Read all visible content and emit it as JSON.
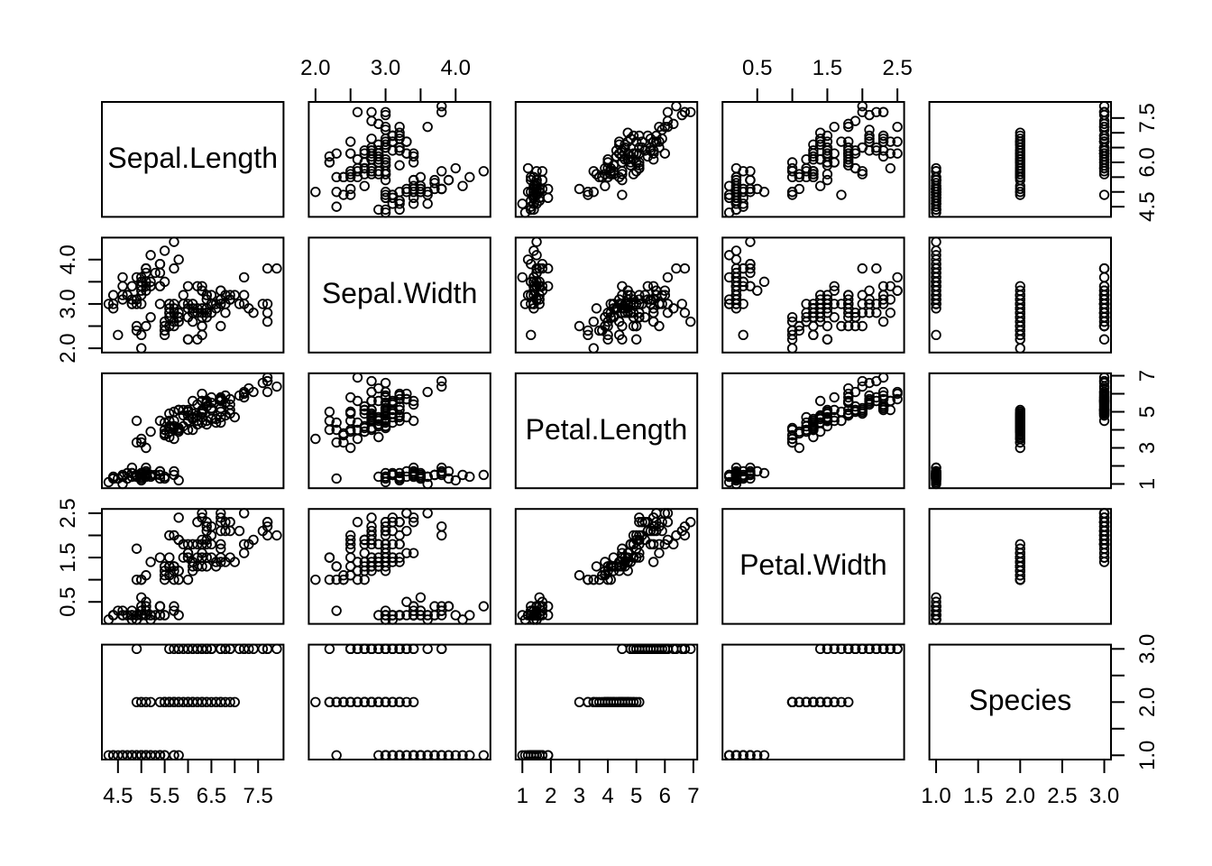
{
  "colors": {
    "background": "#ffffff",
    "foreground": "#000000"
  },
  "chart_data": {
    "type": "scatter-matrix",
    "title": "",
    "point_style": "open-circle",
    "grid": false,
    "variables": [
      {
        "name": "Sepal.Length",
        "lim": [
          4.156,
          8.044
        ],
        "ticks": [
          4.5,
          5.0,
          5.5,
          6.0,
          6.5,
          7.0,
          7.5
        ],
        "h_labels": {
          "values": [
            4.5,
            5.5,
            6.5,
            7.5
          ],
          "texts": [
            "4.5",
            "5.5",
            "6.5",
            "7.5"
          ]
        },
        "v_labels": {
          "values": [
            4.5,
            6.0,
            7.5
          ],
          "texts": [
            "4.5",
            "6.0",
            "7.5"
          ]
        }
      },
      {
        "name": "Sepal.Width",
        "lim": [
          1.904,
          4.496
        ],
        "ticks": [
          2.0,
          2.5,
          3.0,
          3.5,
          4.0
        ],
        "h_labels": {
          "values": [
            2.0,
            3.0,
            4.0
          ],
          "texts": [
            "2.0",
            "3.0",
            "4.0"
          ]
        },
        "v_labels": {
          "values": [
            2.0,
            3.0,
            4.0
          ],
          "texts": [
            "2.0",
            "3.0",
            "4.0"
          ]
        }
      },
      {
        "name": "Petal.Length",
        "lim": [
          0.764,
          7.136
        ],
        "ticks": [
          1,
          2,
          3,
          4,
          5,
          6,
          7
        ],
        "h_labels": {
          "values": [
            1,
            2,
            3,
            4,
            5,
            6,
            7
          ],
          "texts": [
            "1",
            "2",
            "3",
            "4",
            "5",
            "6",
            "7"
          ]
        },
        "v_labels": {
          "values": [
            1,
            3,
            5,
            7
          ],
          "texts": [
            "1",
            "3",
            "5",
            "7"
          ]
        }
      },
      {
        "name": "Petal.Width",
        "lim": [
          0.004,
          2.596
        ],
        "ticks": [
          0.5,
          1.0,
          1.5,
          2.0,
          2.5
        ],
        "h_labels": {
          "values": [
            0.5,
            1.5,
            2.5
          ],
          "texts": [
            "0.5",
            "1.5",
            "2.5"
          ]
        },
        "v_labels": {
          "values": [
            0.5,
            1.5,
            2.5
          ],
          "texts": [
            "0.5",
            "1.5",
            "2.5"
          ]
        }
      },
      {
        "name": "Species",
        "lim": [
          0.92,
          3.08
        ],
        "ticks": [
          1.0,
          1.5,
          2.0,
          2.5,
          3.0
        ],
        "h_labels": {
          "values": [
            1.0,
            1.5,
            2.0,
            2.5,
            3.0
          ],
          "texts": [
            "1.0",
            "1.5",
            "2.0",
            "2.5",
            "3.0"
          ]
        },
        "v_labels": {
          "values": [
            1.0,
            2.0,
            3.0
          ],
          "texts": [
            "1.0",
            "2.0",
            "3.0"
          ]
        }
      }
    ],
    "observations": {
      "Sepal.Length": [
        5.1,
        4.9,
        4.7,
        4.6,
        5.0,
        5.4,
        4.6,
        5.0,
        4.4,
        4.9,
        5.4,
        4.8,
        4.8,
        4.3,
        5.8,
        5.7,
        5.4,
        5.1,
        5.7,
        5.1,
        5.4,
        5.1,
        4.6,
        5.1,
        4.8,
        5.0,
        5.0,
        5.2,
        5.2,
        4.7,
        4.8,
        5.4,
        5.2,
        5.5,
        4.9,
        5.0,
        5.5,
        4.9,
        4.4,
        5.1,
        5.0,
        4.5,
        4.4,
        5.0,
        5.1,
        4.8,
        5.1,
        4.6,
        5.3,
        5.0,
        7.0,
        6.4,
        6.9,
        5.5,
        6.5,
        5.7,
        6.3,
        4.9,
        6.6,
        5.2,
        5.0,
        5.9,
        6.0,
        6.1,
        5.6,
        6.7,
        5.6,
        5.8,
        6.2,
        5.6,
        5.9,
        6.1,
        6.3,
        6.1,
        6.4,
        6.6,
        6.8,
        6.7,
        6.0,
        5.7,
        5.5,
        5.5,
        5.8,
        6.0,
        5.4,
        6.0,
        6.7,
        6.3,
        5.6,
        5.5,
        5.5,
        6.1,
        5.8,
        5.0,
        5.6,
        5.7,
        5.7,
        6.2,
        5.1,
        5.7,
        6.3,
        5.8,
        7.1,
        6.3,
        6.5,
        7.6,
        4.9,
        7.3,
        6.7,
        7.2,
        6.5,
        6.4,
        6.8,
        5.7,
        5.8,
        6.4,
        6.5,
        7.7,
        7.7,
        6.0,
        6.9,
        5.6,
        7.7,
        6.3,
        6.7,
        7.2,
        6.2,
        6.1,
        6.4,
        7.2,
        7.4,
        7.9,
        6.4,
        6.3,
        6.1,
        7.7,
        6.3,
        6.4,
        6.0,
        6.9,
        6.7,
        6.9,
        5.8,
        6.8,
        6.7,
        6.7,
        6.3,
        6.5,
        6.2,
        5.9
      ],
      "Sepal.Width": [
        3.5,
        3.0,
        3.2,
        3.1,
        3.6,
        3.9,
        3.4,
        3.4,
        2.9,
        3.1,
        3.7,
        3.4,
        3.0,
        3.0,
        4.0,
        4.4,
        3.9,
        3.5,
        3.8,
        3.8,
        3.4,
        3.7,
        3.6,
        3.3,
        3.4,
        3.0,
        3.4,
        3.5,
        3.4,
        3.2,
        3.1,
        3.4,
        4.1,
        4.2,
        3.1,
        3.2,
        3.5,
        3.6,
        3.0,
        3.4,
        3.5,
        2.3,
        3.2,
        3.5,
        3.8,
        3.0,
        3.8,
        3.2,
        3.7,
        3.3,
        3.2,
        3.2,
        3.1,
        2.3,
        2.8,
        2.8,
        3.3,
        2.4,
        2.9,
        2.7,
        2.0,
        3.0,
        2.2,
        2.9,
        2.9,
        3.1,
        3.0,
        2.7,
        2.2,
        2.5,
        3.2,
        2.8,
        2.5,
        2.8,
        2.9,
        3.0,
        2.8,
        3.0,
        2.9,
        2.6,
        2.4,
        2.4,
        2.7,
        2.7,
        3.0,
        3.4,
        3.1,
        2.3,
        3.0,
        2.5,
        2.6,
        3.0,
        2.6,
        2.3,
        2.7,
        3.0,
        2.9,
        2.9,
        2.5,
        2.8,
        3.3,
        2.7,
        3.0,
        2.9,
        3.0,
        3.0,
        2.5,
        2.9,
        2.5,
        3.6,
        3.2,
        2.7,
        3.0,
        2.5,
        2.8,
        3.2,
        3.0,
        3.8,
        2.6,
        2.2,
        3.2,
        2.8,
        2.8,
        2.7,
        3.3,
        3.2,
        2.8,
        3.0,
        2.8,
        3.0,
        2.8,
        3.8,
        2.8,
        2.8,
        2.6,
        3.0,
        3.4,
        3.1,
        3.0,
        3.1,
        3.1,
        3.1,
        2.7,
        3.2,
        3.3,
        3.0,
        2.5,
        3.0,
        3.4,
        3.0
      ],
      "Petal.Length": [
        1.4,
        1.4,
        1.3,
        1.5,
        1.4,
        1.7,
        1.4,
        1.5,
        1.4,
        1.5,
        1.5,
        1.6,
        1.4,
        1.1,
        1.2,
        1.5,
        1.3,
        1.4,
        1.7,
        1.5,
        1.7,
        1.5,
        1.0,
        1.7,
        1.9,
        1.6,
        1.6,
        1.5,
        1.4,
        1.6,
        1.6,
        1.5,
        1.5,
        1.4,
        1.5,
        1.2,
        1.3,
        1.4,
        1.3,
        1.5,
        1.3,
        1.3,
        1.3,
        1.6,
        1.9,
        1.4,
        1.6,
        1.4,
        1.5,
        1.4,
        4.7,
        4.5,
        4.9,
        4.0,
        4.6,
        4.5,
        4.7,
        3.3,
        4.6,
        3.9,
        3.5,
        4.2,
        4.0,
        4.7,
        3.6,
        4.4,
        4.5,
        4.1,
        4.5,
        3.9,
        4.8,
        4.0,
        4.9,
        4.7,
        4.3,
        4.4,
        4.8,
        5.0,
        4.5,
        3.5,
        3.8,
        3.7,
        3.9,
        5.1,
        4.5,
        4.5,
        4.7,
        4.4,
        4.1,
        4.0,
        4.4,
        4.6,
        4.0,
        3.3,
        4.2,
        4.2,
        4.2,
        4.3,
        3.0,
        4.1,
        6.0,
        5.1,
        5.9,
        5.6,
        5.8,
        6.6,
        4.5,
        6.3,
        5.8,
        6.1,
        5.1,
        5.3,
        5.5,
        5.0,
        5.1,
        5.3,
        5.5,
        6.7,
        6.9,
        5.0,
        5.7,
        4.9,
        6.7,
        4.9,
        5.7,
        6.0,
        4.8,
        4.9,
        5.6,
        5.8,
        6.1,
        6.4,
        5.6,
        5.1,
        5.6,
        6.1,
        5.6,
        5.5,
        4.8,
        5.4,
        5.6,
        5.1,
        5.1,
        5.9,
        5.7,
        5.2,
        5.0,
        5.2,
        5.4,
        5.1
      ],
      "Petal.Width": [
        0.2,
        0.2,
        0.2,
        0.2,
        0.2,
        0.4,
        0.3,
        0.2,
        0.2,
        0.1,
        0.2,
        0.2,
        0.1,
        0.1,
        0.2,
        0.4,
        0.4,
        0.3,
        0.3,
        0.3,
        0.2,
        0.4,
        0.2,
        0.5,
        0.2,
        0.2,
        0.4,
        0.2,
        0.2,
        0.2,
        0.2,
        0.4,
        0.1,
        0.2,
        0.2,
        0.2,
        0.2,
        0.1,
        0.2,
        0.2,
        0.3,
        0.3,
        0.2,
        0.6,
        0.4,
        0.3,
        0.2,
        0.2,
        0.2,
        0.2,
        1.4,
        1.5,
        1.5,
        1.3,
        1.5,
        1.3,
        1.6,
        1.0,
        1.3,
        1.4,
        1.0,
        1.5,
        1.0,
        1.4,
        1.3,
        1.4,
        1.5,
        1.0,
        1.5,
        1.1,
        1.8,
        1.3,
        1.5,
        1.2,
        1.3,
        1.4,
        1.4,
        1.7,
        1.5,
        1.0,
        1.1,
        1.0,
        1.2,
        1.6,
        1.5,
        1.6,
        1.5,
        1.3,
        1.3,
        1.3,
        1.2,
        1.4,
        1.2,
        1.0,
        1.3,
        1.2,
        1.3,
        1.3,
        1.1,
        1.3,
        2.5,
        1.9,
        2.1,
        1.8,
        2.2,
        2.1,
        1.7,
        1.8,
        1.8,
        2.5,
        2.0,
        1.9,
        2.1,
        2.0,
        2.4,
        2.3,
        1.8,
        2.2,
        2.3,
        1.5,
        2.3,
        2.0,
        2.0,
        1.8,
        2.1,
        1.8,
        1.8,
        1.8,
        2.1,
        1.6,
        1.9,
        2.0,
        2.2,
        1.5,
        1.4,
        2.3,
        2.4,
        1.8,
        1.8,
        2.1,
        2.4,
        2.3,
        1.9,
        2.3,
        2.5,
        2.3,
        1.9,
        2.0,
        2.3,
        1.8
      ],
      "Species": [
        1,
        1,
        1,
        1,
        1,
        1,
        1,
        1,
        1,
        1,
        1,
        1,
        1,
        1,
        1,
        1,
        1,
        1,
        1,
        1,
        1,
        1,
        1,
        1,
        1,
        1,
        1,
        1,
        1,
        1,
        1,
        1,
        1,
        1,
        1,
        1,
        1,
        1,
        1,
        1,
        1,
        1,
        1,
        1,
        1,
        1,
        1,
        1,
        1,
        1,
        2,
        2,
        2,
        2,
        2,
        2,
        2,
        2,
        2,
        2,
        2,
        2,
        2,
        2,
        2,
        2,
        2,
        2,
        2,
        2,
        2,
        2,
        2,
        2,
        2,
        2,
        2,
        2,
        2,
        2,
        2,
        2,
        2,
        2,
        2,
        2,
        2,
        2,
        2,
        2,
        2,
        2,
        2,
        2,
        2,
        2,
        2,
        2,
        2,
        2,
        3,
        3,
        3,
        3,
        3,
        3,
        3,
        3,
        3,
        3,
        3,
        3,
        3,
        3,
        3,
        3,
        3,
        3,
        3,
        3,
        3,
        3,
        3,
        3,
        3,
        3,
        3,
        3,
        3,
        3,
        3,
        3,
        3,
        3,
        3,
        3,
        3,
        3,
        3,
        3,
        3,
        3,
        3,
        3,
        3,
        3,
        3,
        3,
        3,
        3
      ]
    },
    "axis_layout": {
      "top_label_columns": [
        2,
        4
      ],
      "bottom_label_columns": [
        1,
        3,
        5
      ],
      "left_label_rows": [
        2,
        4
      ],
      "right_label_rows": [
        1,
        3,
        5
      ]
    }
  }
}
